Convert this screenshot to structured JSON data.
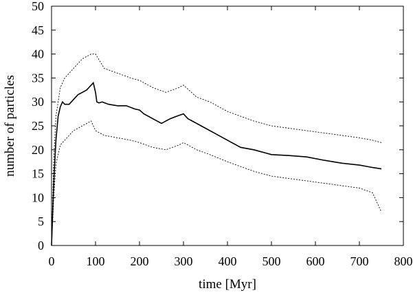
{
  "chart_data": {
    "type": "line",
    "xlabel": "time [Myr]",
    "ylabel": "number of particles",
    "xlim": [
      0,
      800
    ],
    "ylim": [
      0,
      50
    ],
    "xticks": [
      0,
      100,
      200,
      300,
      400,
      500,
      600,
      700,
      800
    ],
    "yticks": [
      0,
      5,
      10,
      15,
      20,
      25,
      30,
      35,
      40,
      45,
      50
    ],
    "grid": false,
    "legend": "none",
    "series": [
      {
        "style": "solid",
        "color": "#000000",
        "x": [
          0,
          3,
          6,
          10,
          15,
          20,
          25,
          30,
          40,
          50,
          60,
          70,
          80,
          90,
          95,
          100,
          103,
          108,
          115,
          130,
          150,
          170,
          190,
          200,
          210,
          230,
          250,
          270,
          290,
          300,
          310,
          330,
          350,
          370,
          400,
          430,
          460,
          500,
          540,
          580,
          620,
          660,
          700,
          730,
          750
        ],
        "values": [
          0,
          8,
          15,
          22,
          27,
          29,
          30,
          29.5,
          29.5,
          30.5,
          31.5,
          32,
          32.5,
          33.5,
          34,
          32,
          30,
          29.8,
          30,
          29.5,
          29.2,
          29.2,
          28.5,
          28.3,
          27.5,
          26.5,
          25.5,
          26.5,
          27.2,
          27.5,
          26.5,
          25.5,
          24.5,
          23.5,
          22,
          20.5,
          20,
          19,
          18.8,
          18.5,
          17.8,
          17.2,
          16.8,
          16.3,
          16
        ]
      },
      {
        "style": "dotted",
        "color": "#000000",
        "x": [
          0,
          5,
          10,
          20,
          30,
          40,
          50,
          60,
          70,
          80,
          90,
          100,
          120,
          150,
          180,
          200,
          230,
          260,
          290,
          300,
          330,
          360,
          400,
          430,
          460,
          500,
          540,
          580,
          620,
          660,
          700,
          730,
          750
        ],
        "values": [
          0,
          18,
          27,
          33,
          35,
          36,
          37,
          38,
          39,
          39.5,
          40,
          40,
          37,
          36,
          35,
          34.5,
          33,
          32,
          33,
          33.5,
          31,
          30,
          28,
          27,
          26,
          25,
          24.5,
          24,
          23.5,
          23,
          22.5,
          22,
          21.5
        ]
      },
      {
        "style": "dotted",
        "color": "#000000",
        "x": [
          0,
          5,
          10,
          20,
          30,
          40,
          50,
          60,
          70,
          80,
          90,
          100,
          120,
          150,
          180,
          200,
          230,
          260,
          290,
          300,
          330,
          360,
          400,
          430,
          460,
          500,
          540,
          580,
          620,
          660,
          700,
          730,
          750
        ],
        "values": [
          0,
          10,
          17,
          21,
          22,
          23,
          24,
          24.5,
          25,
          25.5,
          26,
          24,
          23,
          22.5,
          22,
          21.5,
          20.5,
          20,
          21,
          21.5,
          20,
          19,
          17.5,
          16.5,
          15.5,
          14.5,
          14,
          13.5,
          13,
          12.5,
          12,
          11,
          7
        ]
      }
    ]
  }
}
